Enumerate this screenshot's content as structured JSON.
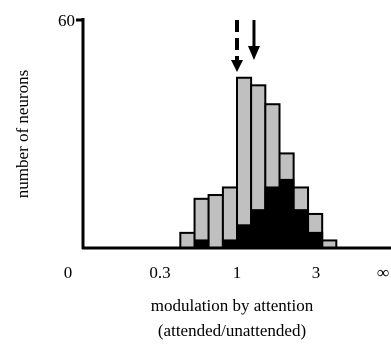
{
  "chart_data": {
    "type": "bar",
    "title": "",
    "xlabel": [
      "modulation by attention",
      "(attended/unattended)"
    ],
    "ylabel": "number of neurons",
    "x_scale": "log",
    "x_ticks": [
      "0",
      "0.3",
      "1",
      "3",
      "∞"
    ],
    "y_ticks": [
      "60"
    ],
    "ylim": [
      0,
      60
    ],
    "grid": false,
    "legend": "none",
    "bins": {
      "lower_edges": [
        0.45,
        0.55,
        0.67,
        0.82,
        1.0,
        1.22,
        1.49,
        1.82,
        2.22,
        2.72,
        3.32
      ],
      "upper_edges": [
        0.55,
        0.67,
        0.82,
        1.0,
        1.22,
        1.49,
        1.82,
        2.22,
        2.72,
        3.32,
        4.05
      ]
    },
    "series": [
      {
        "name": "",
        "color": "#c0c0c0",
        "values": [
          4,
          13,
          14,
          16,
          45,
          43,
          38,
          25,
          16,
          9,
          2
        ]
      },
      {
        "name": "",
        "color": "#000000",
        "values": [
          0,
          2,
          0,
          2,
          6,
          10,
          16,
          18,
          10,
          4,
          0
        ]
      }
    ],
    "annotations": [
      {
        "type": "dashed-arrow",
        "x": 1.0,
        "direction": "down"
      },
      {
        "type": "solid-arrow",
        "x": 1.27,
        "direction": "down"
      }
    ]
  }
}
